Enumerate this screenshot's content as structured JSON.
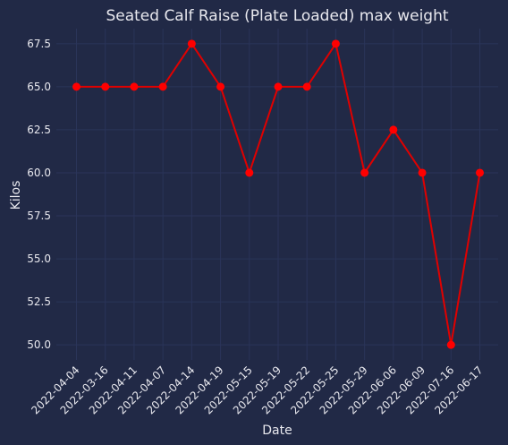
{
  "chart_data": {
    "type": "line",
    "title": "Seated Calf Raise (Plate Loaded) max weight",
    "xlabel": "Date",
    "ylabel": "Kilos",
    "categories": [
      "2022-04-04",
      "2022-03-16",
      "2022-04-11",
      "2022-04-07",
      "2022-04-14",
      "2022-04-19",
      "2022-05-15",
      "2022-05-19",
      "2022-05-22",
      "2022-05-25",
      "2022-05-29",
      "2022-06-06",
      "2022-06-09",
      "2022-07-16",
      "2022-06-17"
    ],
    "series": [
      {
        "values": [
          65.0,
          65.0,
          65.0,
          65.0,
          67.5,
          65.0,
          60.0,
          65.0,
          65.0,
          67.5,
          60.0,
          62.5,
          60.0,
          50.0,
          60.0
        ]
      }
    ],
    "yticks": [
      50.0,
      52.5,
      55.0,
      57.5,
      60.0,
      62.5,
      65.0,
      67.5
    ],
    "ytick_labels": [
      "50.0",
      "52.5",
      "55.0",
      "57.5",
      "60.0",
      "62.5",
      "65.0",
      "67.5"
    ],
    "ylim": [
      49.125,
      68.375
    ],
    "grid": true,
    "colors": {
      "background": "#212946",
      "grid": "#2A3459",
      "line": "#e00000",
      "marker": "#ff0000",
      "text": "#e8e8ee"
    }
  }
}
